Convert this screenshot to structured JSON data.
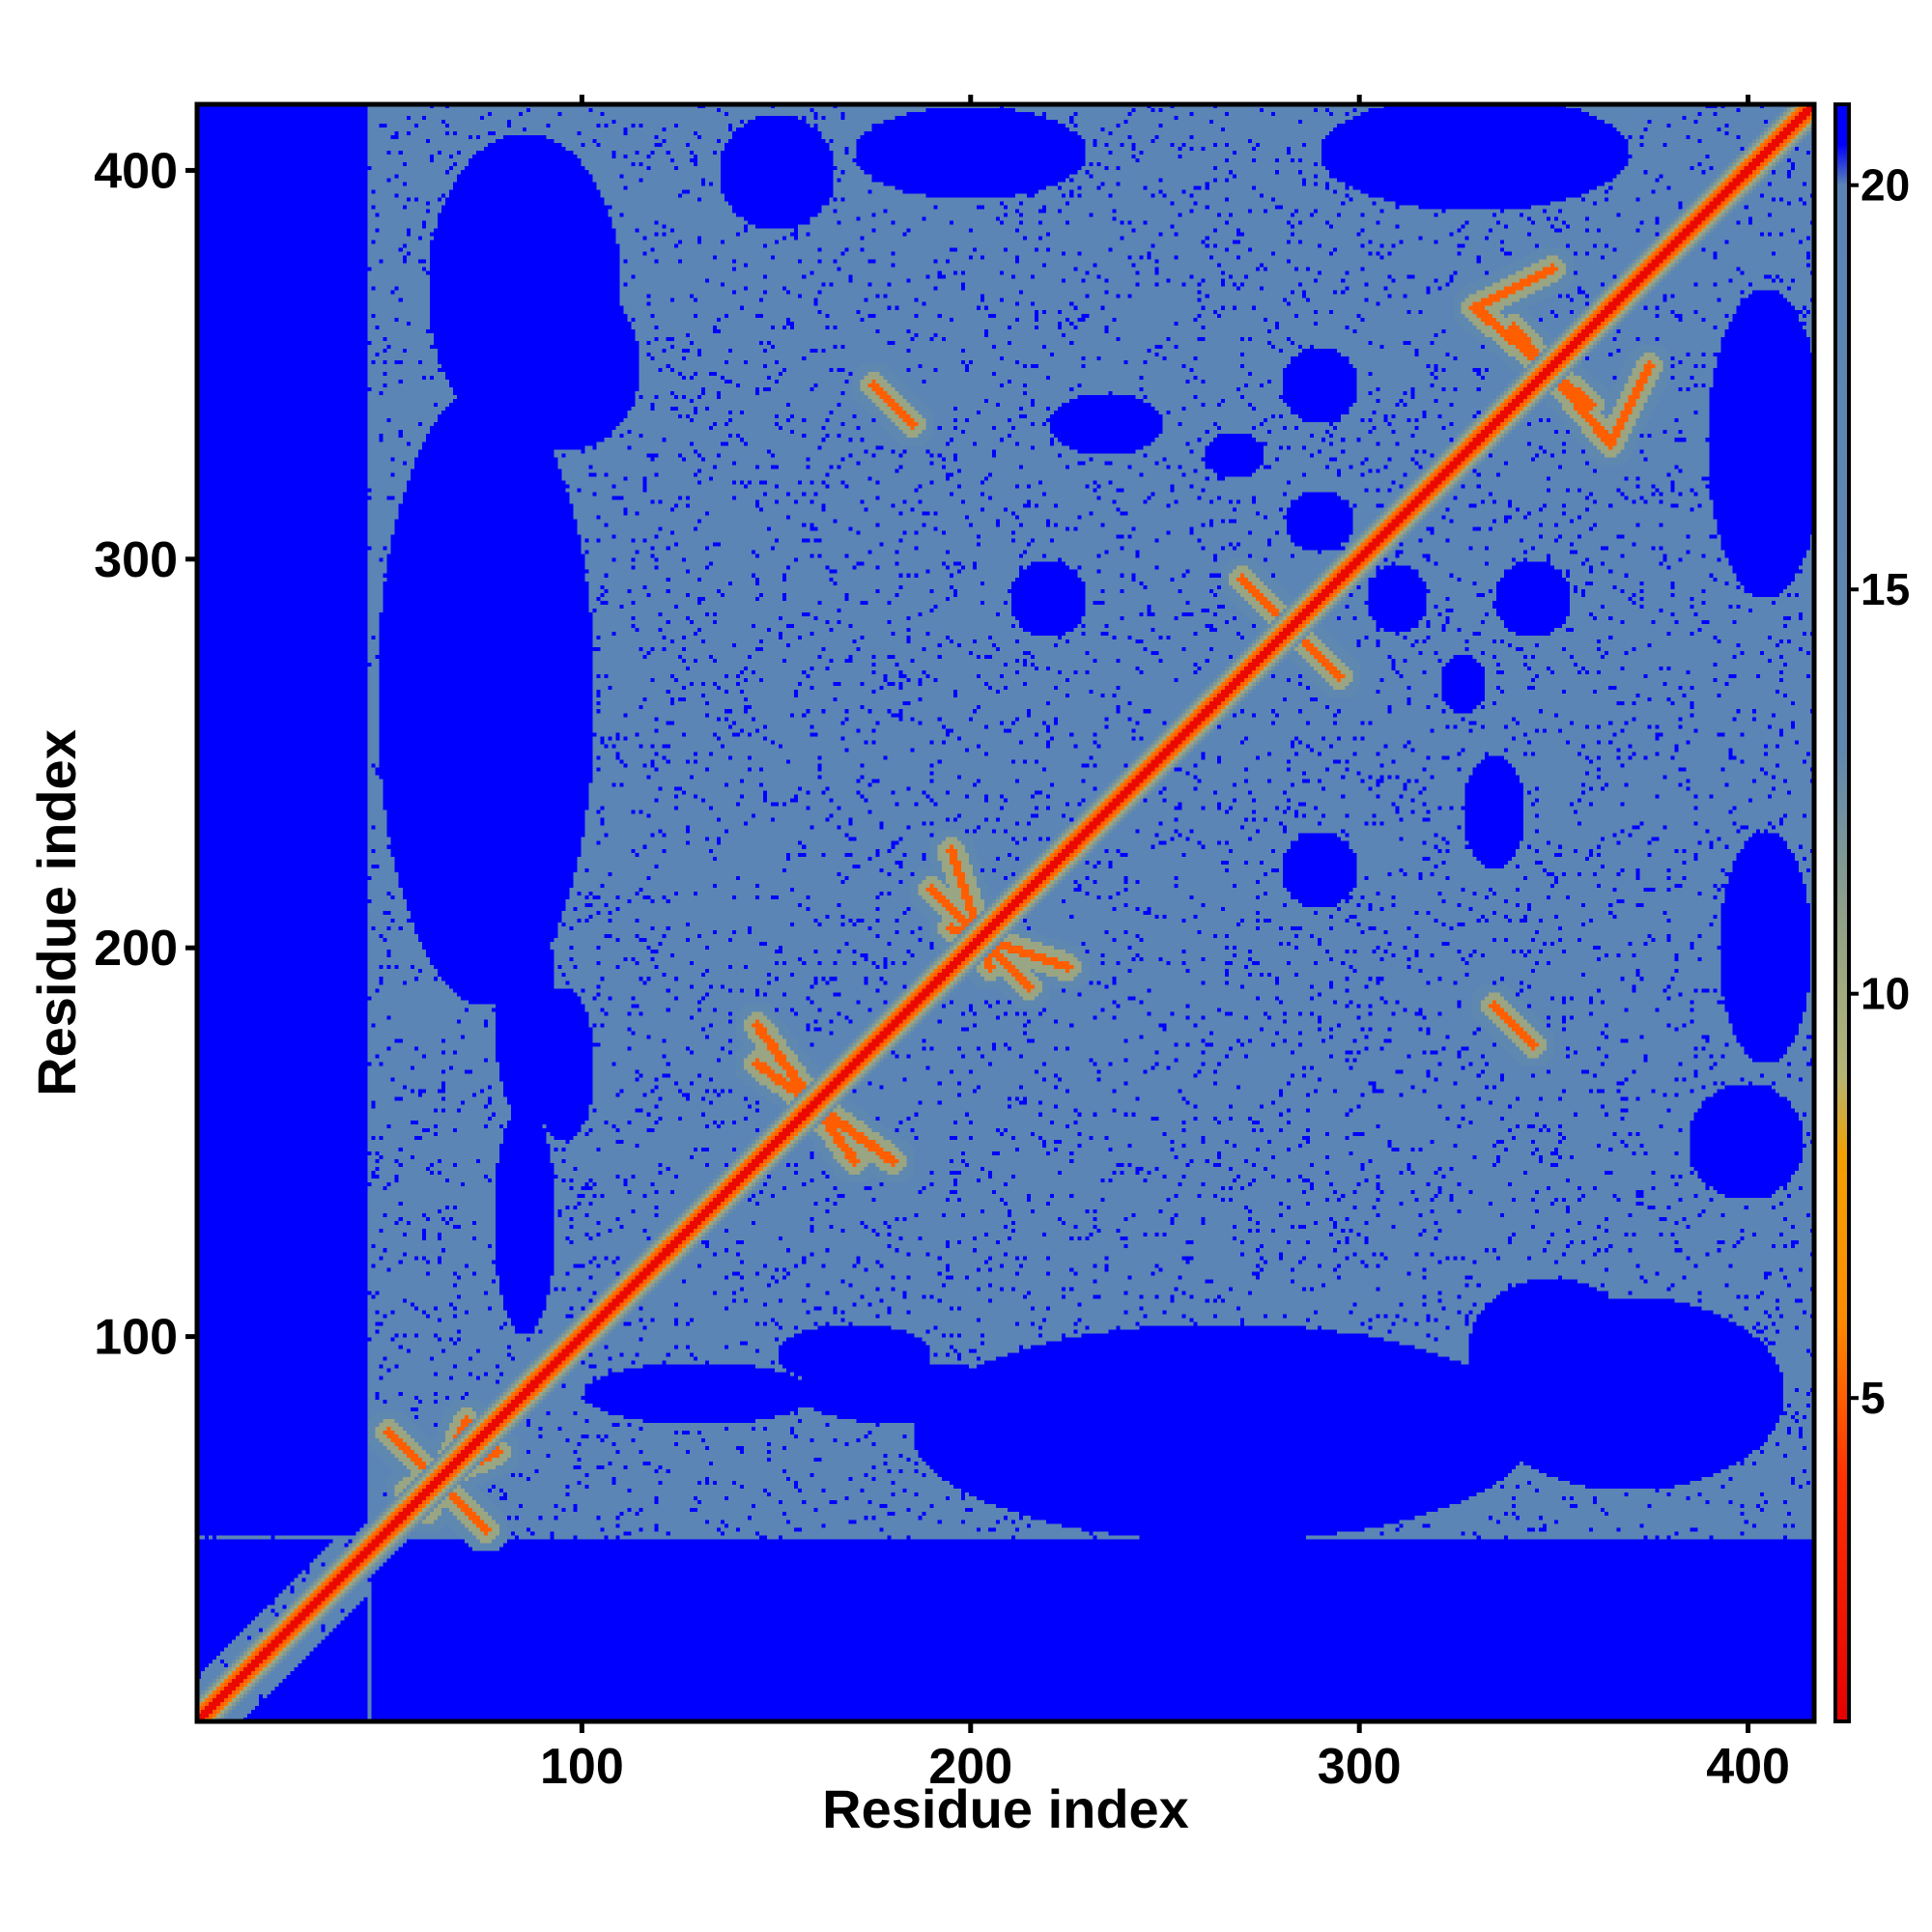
{
  "chart_data": {
    "type": "heatmap",
    "title": "",
    "xlabel": "Residue index",
    "ylabel": "Residue index",
    "xlim": [
      1,
      417
    ],
    "ylim": [
      1,
      417
    ],
    "x_ticks": [
      100,
      200,
      300,
      400
    ],
    "y_ticks": [
      100,
      200,
      300,
      400
    ],
    "x_tick_labels": [
      "100",
      "200",
      "300",
      "400"
    ],
    "y_tick_labels": [
      "100",
      "200",
      "300",
      "400"
    ],
    "colorbar": {
      "range": [
        1,
        21
      ],
      "ticks": [
        5,
        10,
        15,
        20
      ],
      "tick_labels": [
        "5",
        "10",
        "15",
        "20"
      ],
      "stops": [
        {
          "value": 1,
          "color": "#e60000"
        },
        {
          "value": 4,
          "color": "#ff3000"
        },
        {
          "value": 6,
          "color": "#ff8c00"
        },
        {
          "value": 8,
          "color": "#f2a000"
        },
        {
          "value": 9,
          "color": "#b5b574"
        },
        {
          "value": 11,
          "color": "#8fa088"
        },
        {
          "value": 13,
          "color": "#5f88b0"
        },
        {
          "value": 20,
          "color": "#5a84b5"
        },
        {
          "value": 20.5,
          "color": "#0000ff"
        },
        {
          "value": 21,
          "color": "#0000ff"
        }
      ]
    },
    "colors": {
      "far": "#0000ff",
      "mid": "#5b86b6",
      "near": "#c0c07a",
      "contact": "#ff8c00",
      "diagonal": "#e60000"
    },
    "structure": {
      "background_value": 21,
      "mid_value": 18,
      "contact_bands": [
        {
          "x": [
            50,
            75
          ],
          "y": [
            75,
            50
          ]
        },
        {
          "x": [
            60,
            70
          ],
          "y": [
            55,
            78
          ]
        },
        {
          "x": [
            190,
            215
          ],
          "y": [
            215,
            190
          ]
        },
        {
          "x": [
            195,
            225
          ],
          "y": [
            205,
            195
          ]
        },
        {
          "x": [
            270,
            295
          ],
          "y": [
            295,
            270
          ]
        },
        {
          "x": [
            330,
            350
          ],
          "y": [
            365,
            375
          ]
        },
        {
          "x": [
            340,
            365
          ],
          "y": [
            360,
            330
          ]
        },
        {
          "x": [
            145,
            180
          ],
          "y": [
            170,
            145
          ]
        },
        {
          "x": [
            185,
            175
          ],
          "y": [
            335,
            345
          ]
        }
      ],
      "blue_holes": [
        {
          "x": 75,
          "y": 265,
          "rx": 28,
          "ry": 80
        },
        {
          "x": 95,
          "y": 350,
          "rx": 20,
          "ry": 22
        },
        {
          "x": 280,
          "y": 75,
          "rx": 60,
          "ry": 25
        },
        {
          "x": 370,
          "y": 85,
          "rx": 40,
          "ry": 25
        },
        {
          "x": 290,
          "y": 310,
          "rx": 9,
          "ry": 8
        },
        {
          "x": 327,
          "y": 268,
          "rx": 6,
          "ry": 8
        },
        {
          "x": 240,
          "y": 70,
          "rx": 25,
          "ry": 20
        },
        {
          "x": 185,
          "y": 85,
          "rx": 30,
          "ry": 8
        },
        {
          "x": 130,
          "y": 85,
          "rx": 30,
          "ry": 8
        },
        {
          "x": 405,
          "y": 330,
          "rx": 15,
          "ry": 40
        },
        {
          "x": 405,
          "y": 200,
          "rx": 12,
          "ry": 30
        },
        {
          "x": 95,
          "y": 170,
          "rx": 8,
          "ry": 20
        },
        {
          "x": 150,
          "y": 400,
          "rx": 15,
          "ry": 15
        },
        {
          "x": 290,
          "y": 220,
          "rx": 10,
          "ry": 10
        },
        {
          "x": 345,
          "y": 290,
          "rx": 10,
          "ry": 10
        },
        {
          "x": 235,
          "y": 335,
          "rx": 15,
          "ry": 8
        }
      ]
    }
  }
}
